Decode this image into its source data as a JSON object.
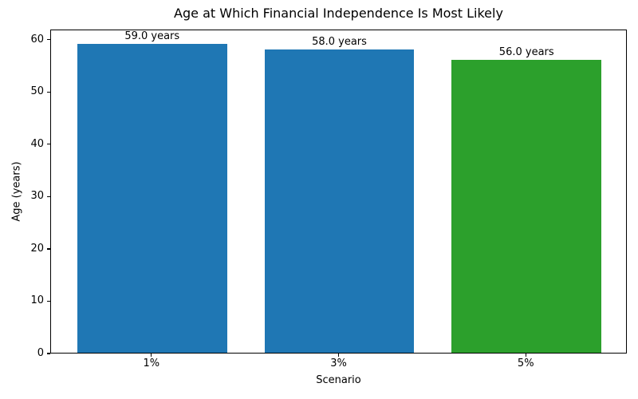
{
  "chart_data": {
    "type": "bar",
    "title": "Age at Which Financial Independence Is Most Likely",
    "xlabel": "Scenario",
    "ylabel": "Age (years)",
    "categories": [
      "1%",
      "3%",
      "5%"
    ],
    "values": [
      59.0,
      58.0,
      56.0
    ],
    "bar_labels": [
      "59.0 years",
      "58.0 years",
      "56.0 years"
    ],
    "bar_colors": [
      "#1f77b4",
      "#1f77b4",
      "#2ca02c"
    ],
    "yticks": [
      0,
      10,
      20,
      30,
      40,
      50,
      60
    ],
    "ylim": [
      0,
      61.95
    ],
    "bar_width_fraction": 0.8,
    "grid": false,
    "legend": "none",
    "background_color": "#ffffff",
    "text_color": "#000000",
    "axes_color": "#000000"
  }
}
